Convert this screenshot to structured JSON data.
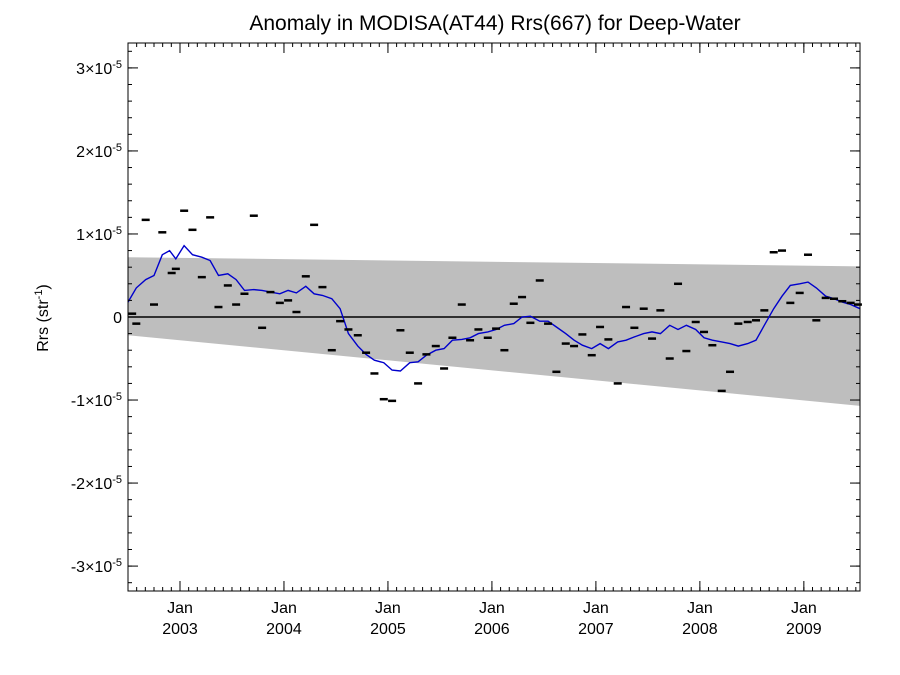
{
  "chart_data": {
    "type": "scatter",
    "title": "Anomaly in MODISA(AT44) Rrs(667) for Deep-Water",
    "ylabel": {
      "main": "Rrs (str",
      "exp": "-1",
      "close": ")"
    },
    "xlabel": "",
    "xlim": [
      2002.5,
      2009.54
    ],
    "ylim": [
      -3.3e-05,
      3.3e-05
    ],
    "y_ticks": [
      {
        "value": 3e-05,
        "mantissa": "3×10",
        "exp": "-5"
      },
      {
        "value": 2e-05,
        "mantissa": "2×10",
        "exp": "-5"
      },
      {
        "value": 1e-05,
        "mantissa": "1×10",
        "exp": "-5"
      },
      {
        "value": 0,
        "mantissa": "0",
        "exp": ""
      },
      {
        "value": -1e-05,
        "mantissa": "-1×10",
        "exp": "-5"
      },
      {
        "value": -2e-05,
        "mantissa": "-2×10",
        "exp": "-5"
      },
      {
        "value": -3e-05,
        "mantissa": "-3×10",
        "exp": "-5"
      }
    ],
    "x_ticks": [
      {
        "value": 2003.0,
        "month": "Jan",
        "year": "2003"
      },
      {
        "value": 2004.0,
        "month": "Jan",
        "year": "2004"
      },
      {
        "value": 2005.0,
        "month": "Jan",
        "year": "2005"
      },
      {
        "value": 2006.0,
        "month": "Jan",
        "year": "2006"
      },
      {
        "value": 2007.0,
        "month": "Jan",
        "year": "2007"
      },
      {
        "value": 2008.0,
        "month": "Jan",
        "year": "2008"
      },
      {
        "value": 2009.0,
        "month": "Jan",
        "year": "2009"
      }
    ],
    "band": {
      "color": "#bebebe",
      "start": {
        "x": 2002.5,
        "upper": 7.2e-06,
        "lower": -2.2e-06
      },
      "end": {
        "x": 2009.54,
        "upper": 6.1e-06,
        "lower": -1.07e-05
      }
    },
    "zero_line": true,
    "series": [
      {
        "kind": "points",
        "color": "#000000",
        "x": [
          2002.54,
          2002.58,
          2002.67,
          2002.75,
          2002.83,
          2002.92,
          2002.96,
          2003.04,
          2003.12,
          2003.21,
          2003.29,
          2003.37,
          2003.46,
          2003.54,
          2003.62,
          2003.71,
          2003.79,
          2003.87,
          2003.96,
          2004.04,
          2004.12,
          2004.21,
          2004.29,
          2004.37,
          2004.46,
          2004.54,
          2004.62,
          2004.71,
          2004.79,
          2004.87,
          2004.96,
          2005.04,
          2005.12,
          2005.21,
          2005.29,
          2005.37,
          2005.46,
          2005.54,
          2005.62,
          2005.71,
          2005.79,
          2005.87,
          2005.96,
          2006.04,
          2006.12,
          2006.21,
          2006.29,
          2006.37,
          2006.46,
          2006.54,
          2006.62,
          2006.71,
          2006.79,
          2006.87,
          2006.96,
          2007.04,
          2007.12,
          2007.21,
          2007.29,
          2007.37,
          2007.46,
          2007.54,
          2007.62,
          2007.71,
          2007.79,
          2007.87,
          2007.96,
          2008.04,
          2008.12,
          2008.21,
          2008.29,
          2008.37,
          2008.46,
          2008.54,
          2008.62,
          2008.71,
          2008.79,
          2008.87,
          2008.96,
          2009.04,
          2009.12,
          2009.21,
          2009.29,
          2009.37,
          2009.45,
          2009.52
        ],
        "y": [
          4e-07,
          -8e-07,
          1.17e-05,
          1.5e-06,
          1.02e-05,
          5.3e-06,
          5.8e-06,
          1.28e-05,
          1.05e-05,
          4.8e-06,
          1.2e-05,
          1.2e-06,
          3.8e-06,
          1.5e-06,
          2.8e-06,
          1.22e-05,
          -1.3e-06,
          3e-06,
          1.7e-06,
          2e-06,
          6e-07,
          4.9e-06,
          1.11e-05,
          3.6e-06,
          -4e-06,
          -5e-07,
          -1.5e-06,
          -2.2e-06,
          -4.3e-06,
          -6.8e-06,
          -9.9e-06,
          -1.01e-05,
          -1.6e-06,
          -4.3e-06,
          -8e-06,
          -4.5e-06,
          -3.5e-06,
          -6.2e-06,
          -2.5e-06,
          1.5e-06,
          -2.8e-06,
          -1.5e-06,
          -2.5e-06,
          -1.4e-06,
          -4e-06,
          1.6e-06,
          2.4e-06,
          -7e-07,
          4.4e-06,
          -8e-07,
          -6.6e-06,
          -3.2e-06,
          -3.5e-06,
          -2.1e-06,
          -4.6e-06,
          -1.2e-06,
          -2.7e-06,
          -8e-06,
          1.2e-06,
          -1.3e-06,
          1e-06,
          -2.6e-06,
          8e-07,
          -5e-06,
          4e-06,
          -4.1e-06,
          -6e-07,
          -1.8e-06,
          -3.4e-06,
          -8.9e-06,
          -6.6e-06,
          -8e-07,
          -6e-07,
          -4e-07,
          8e-07,
          7.8e-06,
          8e-06,
          1.7e-06,
          2.9e-06,
          7.5e-06,
          -4e-07,
          2.3e-06,
          2.2e-06,
          1.9e-06,
          1.7e-06,
          1.5e-06
        ]
      },
      {
        "kind": "line",
        "color": "#0000cc",
        "x": [
          2002.5,
          2002.58,
          2002.67,
          2002.75,
          2002.83,
          2002.9,
          2002.96,
          2003.04,
          2003.12,
          2003.21,
          2003.29,
          2003.37,
          2003.46,
          2003.54,
          2003.62,
          2003.71,
          2003.79,
          2003.87,
          2003.96,
          2004.04,
          2004.12,
          2004.21,
          2004.29,
          2004.37,
          2004.46,
          2004.54,
          2004.58,
          2004.62,
          2004.71,
          2004.79,
          2004.87,
          2004.96,
          2005.04,
          2005.12,
          2005.21,
          2005.29,
          2005.37,
          2005.46,
          2005.54,
          2005.62,
          2005.71,
          2005.79,
          2005.87,
          2005.96,
          2006.04,
          2006.12,
          2006.21,
          2006.29,
          2006.37,
          2006.46,
          2006.54,
          2006.62,
          2006.71,
          2006.79,
          2006.87,
          2006.96,
          2007.04,
          2007.12,
          2007.21,
          2007.29,
          2007.37,
          2007.46,
          2007.54,
          2007.62,
          2007.71,
          2007.79,
          2007.87,
          2007.96,
          2008.04,
          2008.12,
          2008.21,
          2008.29,
          2008.37,
          2008.46,
          2008.54,
          2008.62,
          2008.71,
          2008.79,
          2008.87,
          2008.96,
          2009.04,
          2009.12,
          2009.21,
          2009.29,
          2009.37,
          2009.45,
          2009.54
        ],
        "y": [
          1.8e-06,
          3.5e-06,
          4.5e-06,
          5e-06,
          7.5e-06,
          8e-06,
          7e-06,
          8.6e-06,
          7.5e-06,
          7.2e-06,
          6.8e-06,
          5e-06,
          5.2e-06,
          4.5e-06,
          3.2e-06,
          3.3e-06,
          3.2e-06,
          3e-06,
          2.8e-06,
          3.2e-06,
          2.9e-06,
          3.7e-06,
          2.8e-06,
          2.6e-06,
          2.2e-06,
          1e-06,
          -5e-07,
          -2e-06,
          -3.5e-06,
          -4.5e-06,
          -5.2e-06,
          -5.5e-06,
          -6.4e-06,
          -6.5e-06,
          -5.5e-06,
          -5.4e-06,
          -4.6e-06,
          -4e-06,
          -3.8e-06,
          -2.8e-06,
          -2.7e-06,
          -2.5e-06,
          -2e-06,
          -1.8e-06,
          -1.5e-06,
          -1e-06,
          -8e-07,
          0.0,
          1e-07,
          -5e-07,
          -5e-07,
          -1.2e-06,
          -2e-06,
          -2.8e-06,
          -3.4e-06,
          -3.8e-06,
          -3.2e-06,
          -3.8e-06,
          -3e-06,
          -2.8e-06,
          -2.4e-06,
          -2e-06,
          -1.8e-06,
          -2e-06,
          -1e-06,
          -1.5e-06,
          -1e-06,
          -1.5e-06,
          -2.5e-06,
          -2.8e-06,
          -3e-06,
          -3.2e-06,
          -3.5e-06,
          -3.2e-06,
          -2.8e-06,
          -1e-06,
          1e-06,
          2.5e-06,
          3.8e-06,
          4e-06,
          4.2e-06,
          3.5e-06,
          2.5e-06,
          2.2e-06,
          1.8e-06,
          1.5e-06,
          1e-06
        ]
      }
    ]
  }
}
